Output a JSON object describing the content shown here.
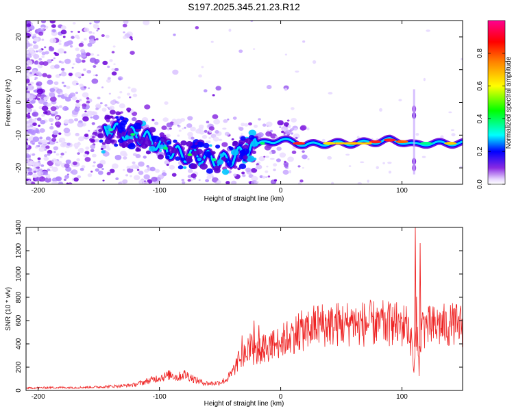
{
  "title": "S197.2025.345.21.23.R12",
  "chart_data": [
    {
      "type": "heatmap",
      "xlabel": "Height of straight line (km)",
      "ylabel": "Frequency (Hz)",
      "xlim": [
        -210,
        150
      ],
      "ylim": [
        -25,
        25
      ],
      "x_ticks": [
        -200,
        -100,
        0,
        100
      ],
      "y_ticks": [
        -20,
        -10,
        0,
        10,
        20
      ],
      "colorbar": {
        "label": "Normalized spectral amplitude",
        "range": [
          0,
          1
        ],
        "ticks": [
          "0.0",
          "0.2",
          "0.4",
          "0.6",
          "0.8"
        ],
        "tick_values": [
          0,
          0.2,
          0.4,
          0.6,
          0.8
        ],
        "colors": [
          "#ffffff",
          "#7f00ff",
          "#0000ff",
          "#00ffff",
          "#00ff00",
          "#ffff00",
          "#ff0000",
          "#ff0080"
        ]
      },
      "ridge": {
        "description_points_x": [
          -145,
          -130,
          -120,
          -110,
          -100,
          -90,
          -80,
          -70,
          -60,
          -50,
          -40,
          -30,
          -20,
          -10,
          0,
          10,
          20,
          40,
          60,
          80,
          90,
          100,
          110,
          120,
          150
        ],
        "description_points_y": [
          -8,
          -9,
          -10,
          -11,
          -13,
          -15,
          -16,
          -16,
          -17,
          -18,
          -17,
          -15,
          -13,
          -12,
          -11.5,
          -12,
          -13,
          -12.5,
          -12.5,
          -12,
          -11.5,
          -12,
          -13,
          -12.5,
          -12.5
        ]
      }
    },
    {
      "type": "line",
      "xlabel": "Height of straight line (km)",
      "ylabel": "SNR (10 * v/v)",
      "xlim": [
        -210,
        150
      ],
      "ylim": [
        0,
        1400
      ],
      "x_ticks": [
        -200,
        -100,
        0,
        100
      ],
      "y_ticks": [
        0,
        200,
        400,
        600,
        800,
        1000,
        1200,
        1400
      ],
      "color": "#ee2222",
      "x": [
        -210,
        -190,
        -170,
        -150,
        -130,
        -120,
        -110,
        -100,
        -95,
        -90,
        -85,
        -80,
        -75,
        -70,
        -65,
        -60,
        -55,
        -50,
        -45,
        -40,
        -35,
        -30,
        -25,
        -20,
        -15,
        -10,
        -5,
        0,
        5,
        10,
        15,
        20,
        30,
        40,
        50,
        60,
        70,
        80,
        90,
        100,
        105,
        108,
        110,
        112,
        114,
        116,
        120,
        130,
        140,
        150
      ],
      "y": [
        20,
        25,
        25,
        30,
        40,
        50,
        80,
        110,
        120,
        140,
        110,
        140,
        120,
        90,
        70,
        60,
        60,
        70,
        90,
        150,
        250,
        300,
        330,
        320,
        350,
        370,
        400,
        420,
        450,
        480,
        500,
        520,
        560,
        570,
        570,
        580,
        570,
        580,
        570,
        560,
        560,
        400,
        150,
        600,
        160,
        560,
        540,
        550,
        560,
        560
      ],
      "spikes": [
        {
          "x": -22,
          "y": 600
        },
        {
          "x": -18,
          "y": 560
        },
        {
          "x": -14,
          "y": 480
        },
        {
          "x": -8,
          "y": 490
        },
        {
          "x": 111,
          "y": 1400
        },
        {
          "x": 115,
          "y": 1265
        }
      ]
    }
  ]
}
